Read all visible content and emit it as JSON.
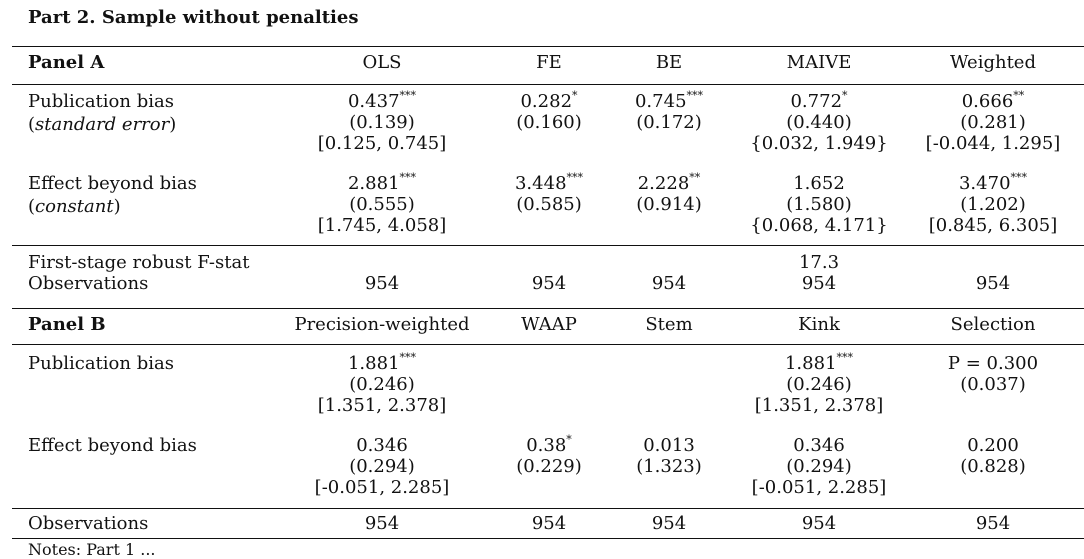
{
  "title": "Part 2. Sample without penalties",
  "panel_a": {
    "label": "Panel A",
    "headers": [
      "OLS",
      "FE",
      "BE",
      "MAIVE",
      "Weighted"
    ],
    "pub_bias_label": "Publication bias",
    "pub_bias_sub": "standard error",
    "pub_bias": [
      {
        "est": "0.437",
        "stars": "***",
        "se": "(0.139)",
        "ci": "[0.125, 0.745]"
      },
      {
        "est": "0.282",
        "stars": "*",
        "se": "(0.160)",
        "ci": ""
      },
      {
        "est": "0.745",
        "stars": "***",
        "se": "(0.172)",
        "ci": ""
      },
      {
        "est": "0.772",
        "stars": "*",
        "se": "(0.440)",
        "ci": "{0.032, 1.949}"
      },
      {
        "est": "0.666",
        "stars": "**",
        "se": "(0.281)",
        "ci": "[-0.044, 1.295]"
      }
    ],
    "effect_label": "Effect beyond bias",
    "effect_sub": "constant",
    "effect": [
      {
        "est": "2.881",
        "stars": "***",
        "se": "(0.555)",
        "ci": "[1.745, 4.058]"
      },
      {
        "est": "3.448",
        "stars": "***",
        "se": "(0.585)",
        "ci": ""
      },
      {
        "est": "2.228",
        "stars": "**",
        "se": "(0.914)",
        "ci": ""
      },
      {
        "est": "1.652",
        "stars": "",
        "se": "(1.580)",
        "ci": "{0.068, 4.171}"
      },
      {
        "est": "3.470",
        "stars": "***",
        "se": "(1.202)",
        "ci": "[0.845, 6.305]"
      }
    ],
    "fstat_label": "First-stage robust F-stat",
    "fstat": [
      "",
      "",
      "",
      "17.3",
      ""
    ],
    "obs_label": "Observations",
    "obs": [
      "954",
      "954",
      "954",
      "954",
      "954"
    ]
  },
  "panel_b": {
    "label": "Panel B",
    "headers": [
      "Precision-weighted",
      "WAAP",
      "Stem",
      "Kink",
      "Selection"
    ],
    "pub_bias_label": "Publication bias",
    "pub_bias": [
      {
        "est": "1.881",
        "stars": "***",
        "se": "(0.246)",
        "ci": "[1.351, 2.378]"
      },
      {
        "est": "",
        "stars": "",
        "se": "",
        "ci": ""
      },
      {
        "est": "",
        "stars": "",
        "se": "",
        "ci": ""
      },
      {
        "est": "1.881",
        "stars": "***",
        "se": "(0.246)",
        "ci": "[1.351, 2.378]"
      },
      {
        "est": "P = 0.300",
        "stars": "",
        "se": "(0.037)",
        "ci": ""
      }
    ],
    "effect_label": "Effect beyond bias",
    "effect": [
      {
        "est": "0.346",
        "stars": "",
        "se": "(0.294)",
        "ci": "[-0.051, 2.285]"
      },
      {
        "est": "0.38",
        "stars": "*",
        "se": "(0.229)",
        "ci": ""
      },
      {
        "est": "0.013",
        "stars": "",
        "se": "(1.323)",
        "ci": ""
      },
      {
        "est": "0.346",
        "stars": "",
        "se": "(0.294)",
        "ci": "[-0.051, 2.285]"
      },
      {
        "est": "0.200",
        "stars": "",
        "se": "(0.828)",
        "ci": ""
      }
    ],
    "obs_label": "Observations",
    "obs": [
      "954",
      "954",
      "954",
      "954",
      "954"
    ]
  },
  "footnote": "Notes: Part 1 ... "
}
